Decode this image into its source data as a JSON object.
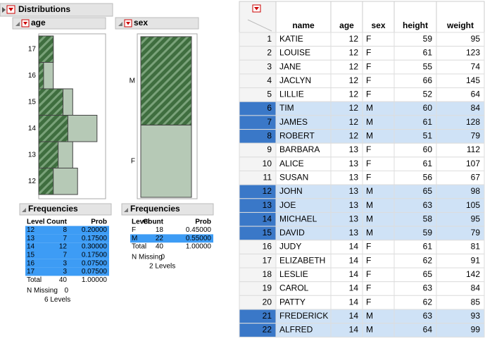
{
  "distributions": {
    "title": "Distributions",
    "age": {
      "title": "age",
      "frequencies": {
        "title": "Frequencies",
        "columns": [
          "Level",
          "Count",
          "Prob"
        ],
        "rows": [
          {
            "level": 12,
            "count": 8,
            "prob": "0.20000",
            "selected_count": 3,
            "selected": true
          },
          {
            "level": 13,
            "count": 7,
            "prob": "0.17500",
            "selected_count": 4,
            "selected": true
          },
          {
            "level": 14,
            "count": 12,
            "prob": "0.30000",
            "selected_count": 6,
            "selected": true
          },
          {
            "level": 15,
            "count": 7,
            "prob": "0.17500",
            "selected_count": 5,
            "selected": true
          },
          {
            "level": 16,
            "count": 3,
            "prob": "0.07500",
            "selected_count": 1,
            "selected": true
          },
          {
            "level": 17,
            "count": 3,
            "prob": "0.07500",
            "selected_count": 3,
            "selected": true
          }
        ],
        "total": {
          "label": "Total",
          "count": 40,
          "prob": "1.00000"
        },
        "n_missing": {
          "label": "N Missing",
          "value": 0
        },
        "levels": "6 Levels"
      }
    },
    "sex": {
      "title": "sex",
      "frequencies": {
        "title": "Frequencies",
        "columns": [
          "Level",
          "Count",
          "Prob"
        ],
        "rows": [
          {
            "level": "F",
            "count": 18,
            "prob": "0.45000",
            "selected_count": 0,
            "selected": false
          },
          {
            "level": "M",
            "count": 22,
            "prob": "0.55000",
            "selected_count": 22,
            "selected": true
          }
        ],
        "total": {
          "label": "Total",
          "count": 40,
          "prob": "1.00000"
        },
        "n_missing": {
          "label": "N Missing",
          "value": 0
        },
        "levels": "2 Levels"
      }
    }
  },
  "table": {
    "columns": [
      "name",
      "age",
      "sex",
      "height",
      "weight"
    ],
    "rows": [
      {
        "row": 1,
        "name": "KATIE",
        "age": 12,
        "sex": "F",
        "height": 59,
        "weight": 95,
        "selected": false
      },
      {
        "row": 2,
        "name": "LOUISE",
        "age": 12,
        "sex": "F",
        "height": 61,
        "weight": 123,
        "selected": false
      },
      {
        "row": 3,
        "name": "JANE",
        "age": 12,
        "sex": "F",
        "height": 55,
        "weight": 74,
        "selected": false
      },
      {
        "row": 4,
        "name": "JACLYN",
        "age": 12,
        "sex": "F",
        "height": 66,
        "weight": 145,
        "selected": false
      },
      {
        "row": 5,
        "name": "LILLIE",
        "age": 12,
        "sex": "F",
        "height": 52,
        "weight": 64,
        "selected": false
      },
      {
        "row": 6,
        "name": "TIM",
        "age": 12,
        "sex": "M",
        "height": 60,
        "weight": 84,
        "selected": true
      },
      {
        "row": 7,
        "name": "JAMES",
        "age": 12,
        "sex": "M",
        "height": 61,
        "weight": 128,
        "selected": true
      },
      {
        "row": 8,
        "name": "ROBERT",
        "age": 12,
        "sex": "M",
        "height": 51,
        "weight": 79,
        "selected": true
      },
      {
        "row": 9,
        "name": "BARBARA",
        "age": 13,
        "sex": "F",
        "height": 60,
        "weight": 112,
        "selected": false
      },
      {
        "row": 10,
        "name": "ALICE",
        "age": 13,
        "sex": "F",
        "height": 61,
        "weight": 107,
        "selected": false
      },
      {
        "row": 11,
        "name": "SUSAN",
        "age": 13,
        "sex": "F",
        "height": 56,
        "weight": 67,
        "selected": false
      },
      {
        "row": 12,
        "name": "JOHN",
        "age": 13,
        "sex": "M",
        "height": 65,
        "weight": 98,
        "selected": true
      },
      {
        "row": 13,
        "name": "JOE",
        "age": 13,
        "sex": "M",
        "height": 63,
        "weight": 105,
        "selected": true
      },
      {
        "row": 14,
        "name": "MICHAEL",
        "age": 13,
        "sex": "M",
        "height": 58,
        "weight": 95,
        "selected": true
      },
      {
        "row": 15,
        "name": "DAVID",
        "age": 13,
        "sex": "M",
        "height": 59,
        "weight": 79,
        "selected": true
      },
      {
        "row": 16,
        "name": "JUDY",
        "age": 14,
        "sex": "F",
        "height": 61,
        "weight": 81,
        "selected": false
      },
      {
        "row": 17,
        "name": "ELIZABETH",
        "age": 14,
        "sex": "F",
        "height": 62,
        "weight": 91,
        "selected": false
      },
      {
        "row": 18,
        "name": "LESLIE",
        "age": 14,
        "sex": "F",
        "height": 65,
        "weight": 142,
        "selected": false
      },
      {
        "row": 19,
        "name": "CAROL",
        "age": 14,
        "sex": "F",
        "height": 63,
        "weight": 84,
        "selected": false
      },
      {
        "row": 20,
        "name": "PATTY",
        "age": 14,
        "sex": "F",
        "height": 62,
        "weight": 85,
        "selected": false
      },
      {
        "row": 21,
        "name": "FREDERICK",
        "age": 14,
        "sex": "M",
        "height": 63,
        "weight": 93,
        "selected": true
      },
      {
        "row": 22,
        "name": "ALFRED",
        "age": 14,
        "sex": "M",
        "height": 64,
        "weight": 99,
        "selected": true
      }
    ]
  }
}
